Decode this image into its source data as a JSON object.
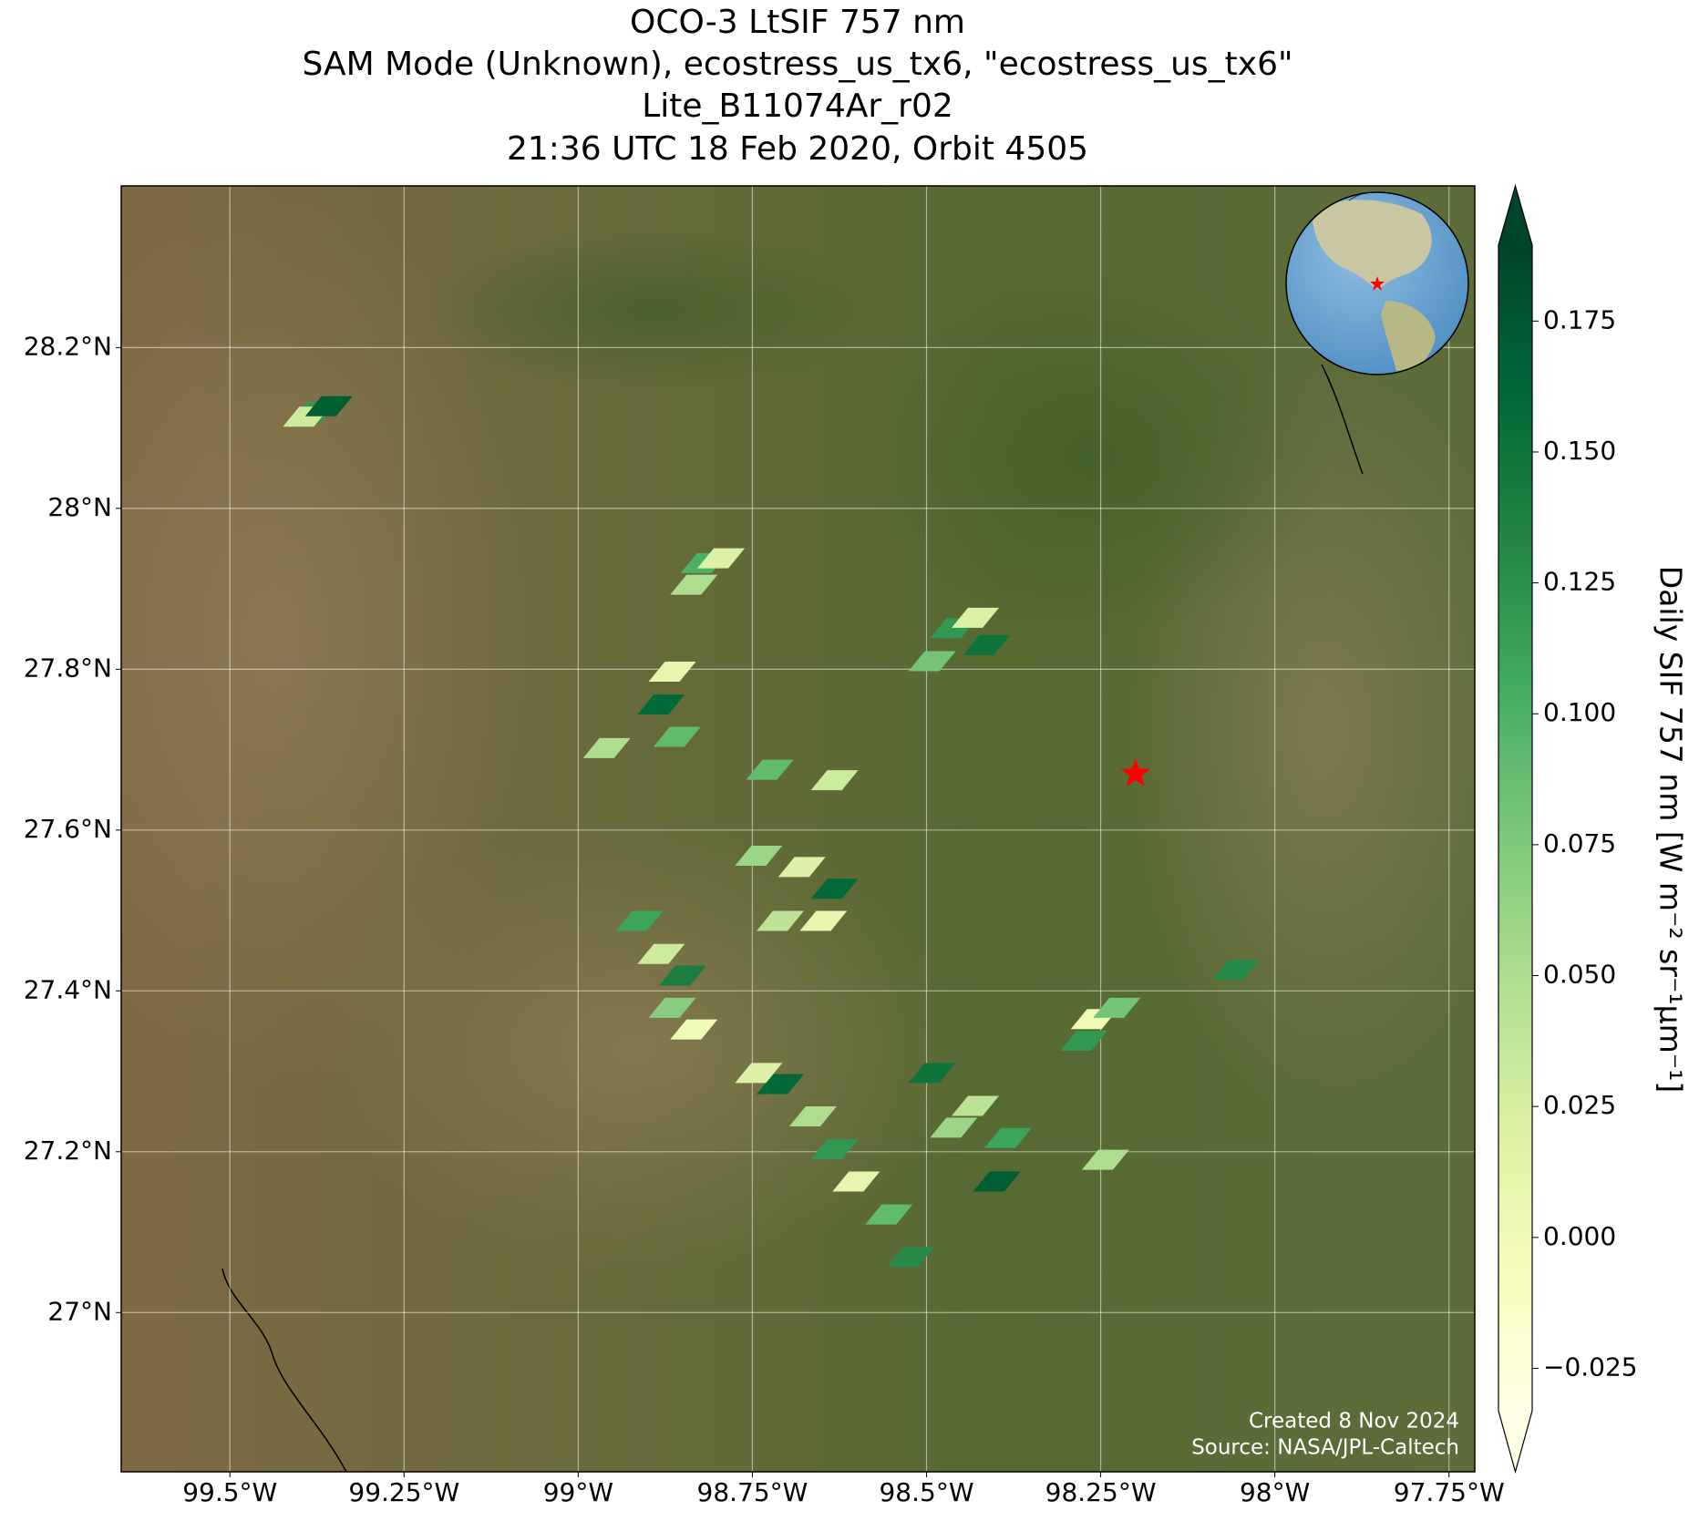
{
  "chart_data": {
    "type": "map",
    "title": "OCO-3 LtSIF 757 nm",
    "subtitle": "SAM Mode (Unknown), ecostress_us_tx6, \"ecostress_us_tx6\"",
    "product": "Lite_B11074Ar_r02",
    "time": "21:36 UTC 18 Feb 2020, Orbit 4505",
    "colorbar_label": "Daily SIF 757 nm [W m⁻² sr⁻¹μm⁻¹]",
    "credits": [
      "Created 8 Nov 2024",
      "Source: NASA/JPL-Caltech"
    ],
    "xlim": [
      -99.656,
      -97.713
    ],
    "ylim": [
      26.802,
      28.401
    ],
    "xticks": [
      {
        "value": -99.5,
        "label": "99.5°W"
      },
      {
        "value": -99.25,
        "label": "99.25°W"
      },
      {
        "value": -99,
        "label": "99°W"
      },
      {
        "value": -98.75,
        "label": "98.75°W"
      },
      {
        "value": -98.5,
        "label": "98.5°W"
      },
      {
        "value": -98.25,
        "label": "98.25°W"
      },
      {
        "value": -98,
        "label": "98°W"
      },
      {
        "value": -97.75,
        "label": "97.75°W"
      }
    ],
    "yticks": [
      {
        "value": 27,
        "label": "27°N"
      },
      {
        "value": 27.2,
        "label": "27.2°N"
      },
      {
        "value": 27.4,
        "label": "27.4°N"
      },
      {
        "value": 27.6,
        "label": "27.6°N"
      },
      {
        "value": 27.8,
        "label": "27.8°N"
      },
      {
        "value": 28,
        "label": "28°N"
      },
      {
        "value": 28.2,
        "label": "28.2°N"
      }
    ],
    "clim": [
      -0.0331,
      0.1895
    ],
    "cticks": [
      {
        "value": -0.025,
        "label": "−0.025"
      },
      {
        "value": 0,
        "label": "0.000"
      },
      {
        "value": 0.025,
        "label": "0.025"
      },
      {
        "value": 0.05,
        "label": "0.050"
      },
      {
        "value": 0.075,
        "label": "0.075"
      },
      {
        "value": 0.1,
        "label": "0.100"
      },
      {
        "value": 0.125,
        "label": "0.125"
      },
      {
        "value": 0.15,
        "label": "0.150"
      },
      {
        "value": 0.175,
        "label": "0.175"
      }
    ],
    "colormap": [
      "#ffffe5",
      "#f7fcb9",
      "#d9f0a3",
      "#addd8e",
      "#78c679",
      "#41ab5d",
      "#238443",
      "#006837",
      "#004529"
    ],
    "grid": true,
    "target": {
      "lon": -98.2,
      "lat": 27.67,
      "color": "#ff0000"
    },
    "soundings": {
      "lon": [
        -99.379,
        -99.39,
        -99.358,
        -98.819,
        -98.834,
        -98.795,
        -98.865,
        -98.881,
        -98.858,
        -98.959,
        -98.461,
        -98.43,
        -98.492,
        -98.414,
        -98.632,
        -98.725,
        -98.741,
        -98.679,
        -98.632,
        -98.71,
        -98.648,
        -98.912,
        -98.881,
        -98.85,
        -98.865,
        -98.834,
        -98.71,
        -98.663,
        -98.632,
        -98.601,
        -98.554,
        -98.523,
        -98.741,
        -98.492,
        -98.43,
        -98.383,
        -98.399,
        -98.461,
        -98.259,
        -98.227,
        -98.274,
        -98.056,
        -98.243
      ],
      "lat": [
        28.12,
        28.114,
        28.127,
        27.932,
        27.905,
        27.938,
        27.797,
        27.756,
        27.716,
        27.702,
        27.851,
        27.864,
        27.81,
        27.83,
        27.662,
        27.675,
        27.568,
        27.554,
        27.527,
        27.487,
        27.487,
        27.487,
        27.446,
        27.419,
        27.379,
        27.352,
        27.284,
        27.244,
        27.203,
        27.163,
        27.122,
        27.069,
        27.298,
        27.298,
        27.257,
        27.217,
        27.163,
        27.23,
        27.365,
        27.379,
        27.338,
        27.426,
        27.19
      ],
      "values": [
        0.12,
        0.03,
        0.17,
        0.1,
        0.05,
        0.02,
        0.01,
        0.16,
        0.09,
        0.05,
        0.12,
        0.02,
        0.08,
        0.15,
        0.03,
        0.09,
        0.06,
        0.02,
        0.16,
        0.04,
        0.01,
        0.11,
        0.03,
        0.14,
        0.07,
        0.0,
        0.16,
        0.05,
        0.12,
        0.01,
        0.09,
        0.13,
        0.02,
        0.15,
        0.04,
        0.11,
        0.17,
        0.06,
        0.0,
        0.08,
        0.12,
        0.13,
        0.05
      ]
    }
  }
}
